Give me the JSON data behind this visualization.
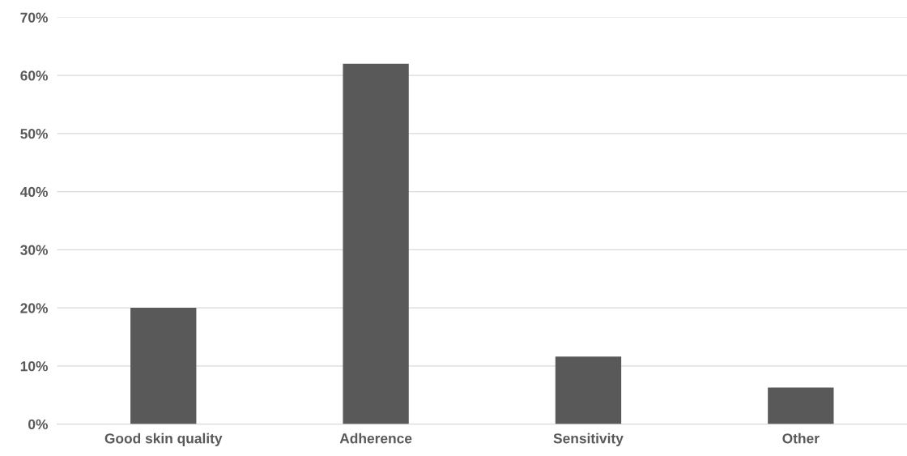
{
  "chart_data": {
    "type": "bar",
    "categories": [
      "Good skin quality",
      "Adherence",
      "Sensitivity",
      "Other"
    ],
    "values": [
      20,
      62,
      11.6,
      6.3
    ],
    "color": "#595959",
    "ylim": [
      0,
      70
    ],
    "yticks": [
      {
        "value": 0,
        "label": "0%"
      },
      {
        "value": 10,
        "label": "10%"
      },
      {
        "value": 20,
        "label": "20%"
      },
      {
        "value": 30,
        "label": "30%"
      },
      {
        "value": 40,
        "label": "40%"
      },
      {
        "value": 50,
        "label": "50%"
      },
      {
        "value": 60,
        "label": "60%"
      },
      {
        "value": 70,
        "label": "70%"
      }
    ],
    "grid": "y",
    "legend": false
  }
}
